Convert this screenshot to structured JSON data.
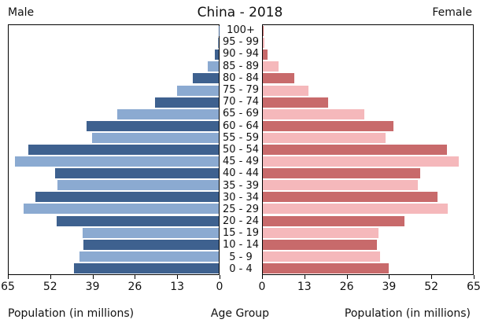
{
  "title": "China - 2018",
  "headers": {
    "male": "Male",
    "female": "Female"
  },
  "captions": {
    "left": "Population (in millions)",
    "center": "Age Group",
    "right": "Population (in millions)"
  },
  "colors": {
    "male_dark": "#3E618F",
    "male_light": "#8BAAD1",
    "female_dark": "#C86A6B",
    "female_light": "#F5B8BB",
    "axis": "#000000",
    "background": "#FFFFFF"
  },
  "axis": {
    "max": 65,
    "male_ticks": [
      65,
      52,
      39,
      26,
      13,
      0
    ],
    "female_ticks": [
      0,
      13,
      26,
      39,
      52,
      65
    ]
  },
  "chart_data": {
    "type": "bar",
    "subtype": "population-pyramid",
    "title": "China - 2018",
    "xlabel": "Population (in millions)",
    "ylabel": "Age Group",
    "xlim": [
      0,
      65
    ],
    "order": "top-to-bottom",
    "categories": [
      "100+",
      "95 - 99",
      "90 - 94",
      "85 - 89",
      "80 - 84",
      "75 - 79",
      "70 - 74",
      "65 - 69",
      "60 - 64",
      "55 - 59",
      "50 - 54",
      "45 - 49",
      "40 - 44",
      "35 - 39",
      "30 - 34",
      "25 - 29",
      "20 - 24",
      "15 - 19",
      "10 - 14",
      "5 - 9",
      "0 - 4"
    ],
    "series": [
      {
        "name": "Male",
        "side": "left",
        "values": [
          0.1,
          0.3,
          1.3,
          3.5,
          8.1,
          12.9,
          19.7,
          31.3,
          41.0,
          39.2,
          58.9,
          63.0,
          50.7,
          49.9,
          56.7,
          60.5,
          50.1,
          42.2,
          41.8,
          43.0,
          44.8
        ]
      },
      {
        "name": "Female",
        "side": "right",
        "values": [
          0.2,
          0.4,
          1.5,
          4.9,
          9.8,
          14.1,
          20.3,
          31.5,
          40.3,
          37.9,
          57.0,
          60.5,
          48.7,
          47.9,
          54.0,
          57.2,
          43.9,
          35.8,
          35.2,
          36.3,
          38.9
        ]
      }
    ],
    "legend": "none",
    "grid": false
  }
}
